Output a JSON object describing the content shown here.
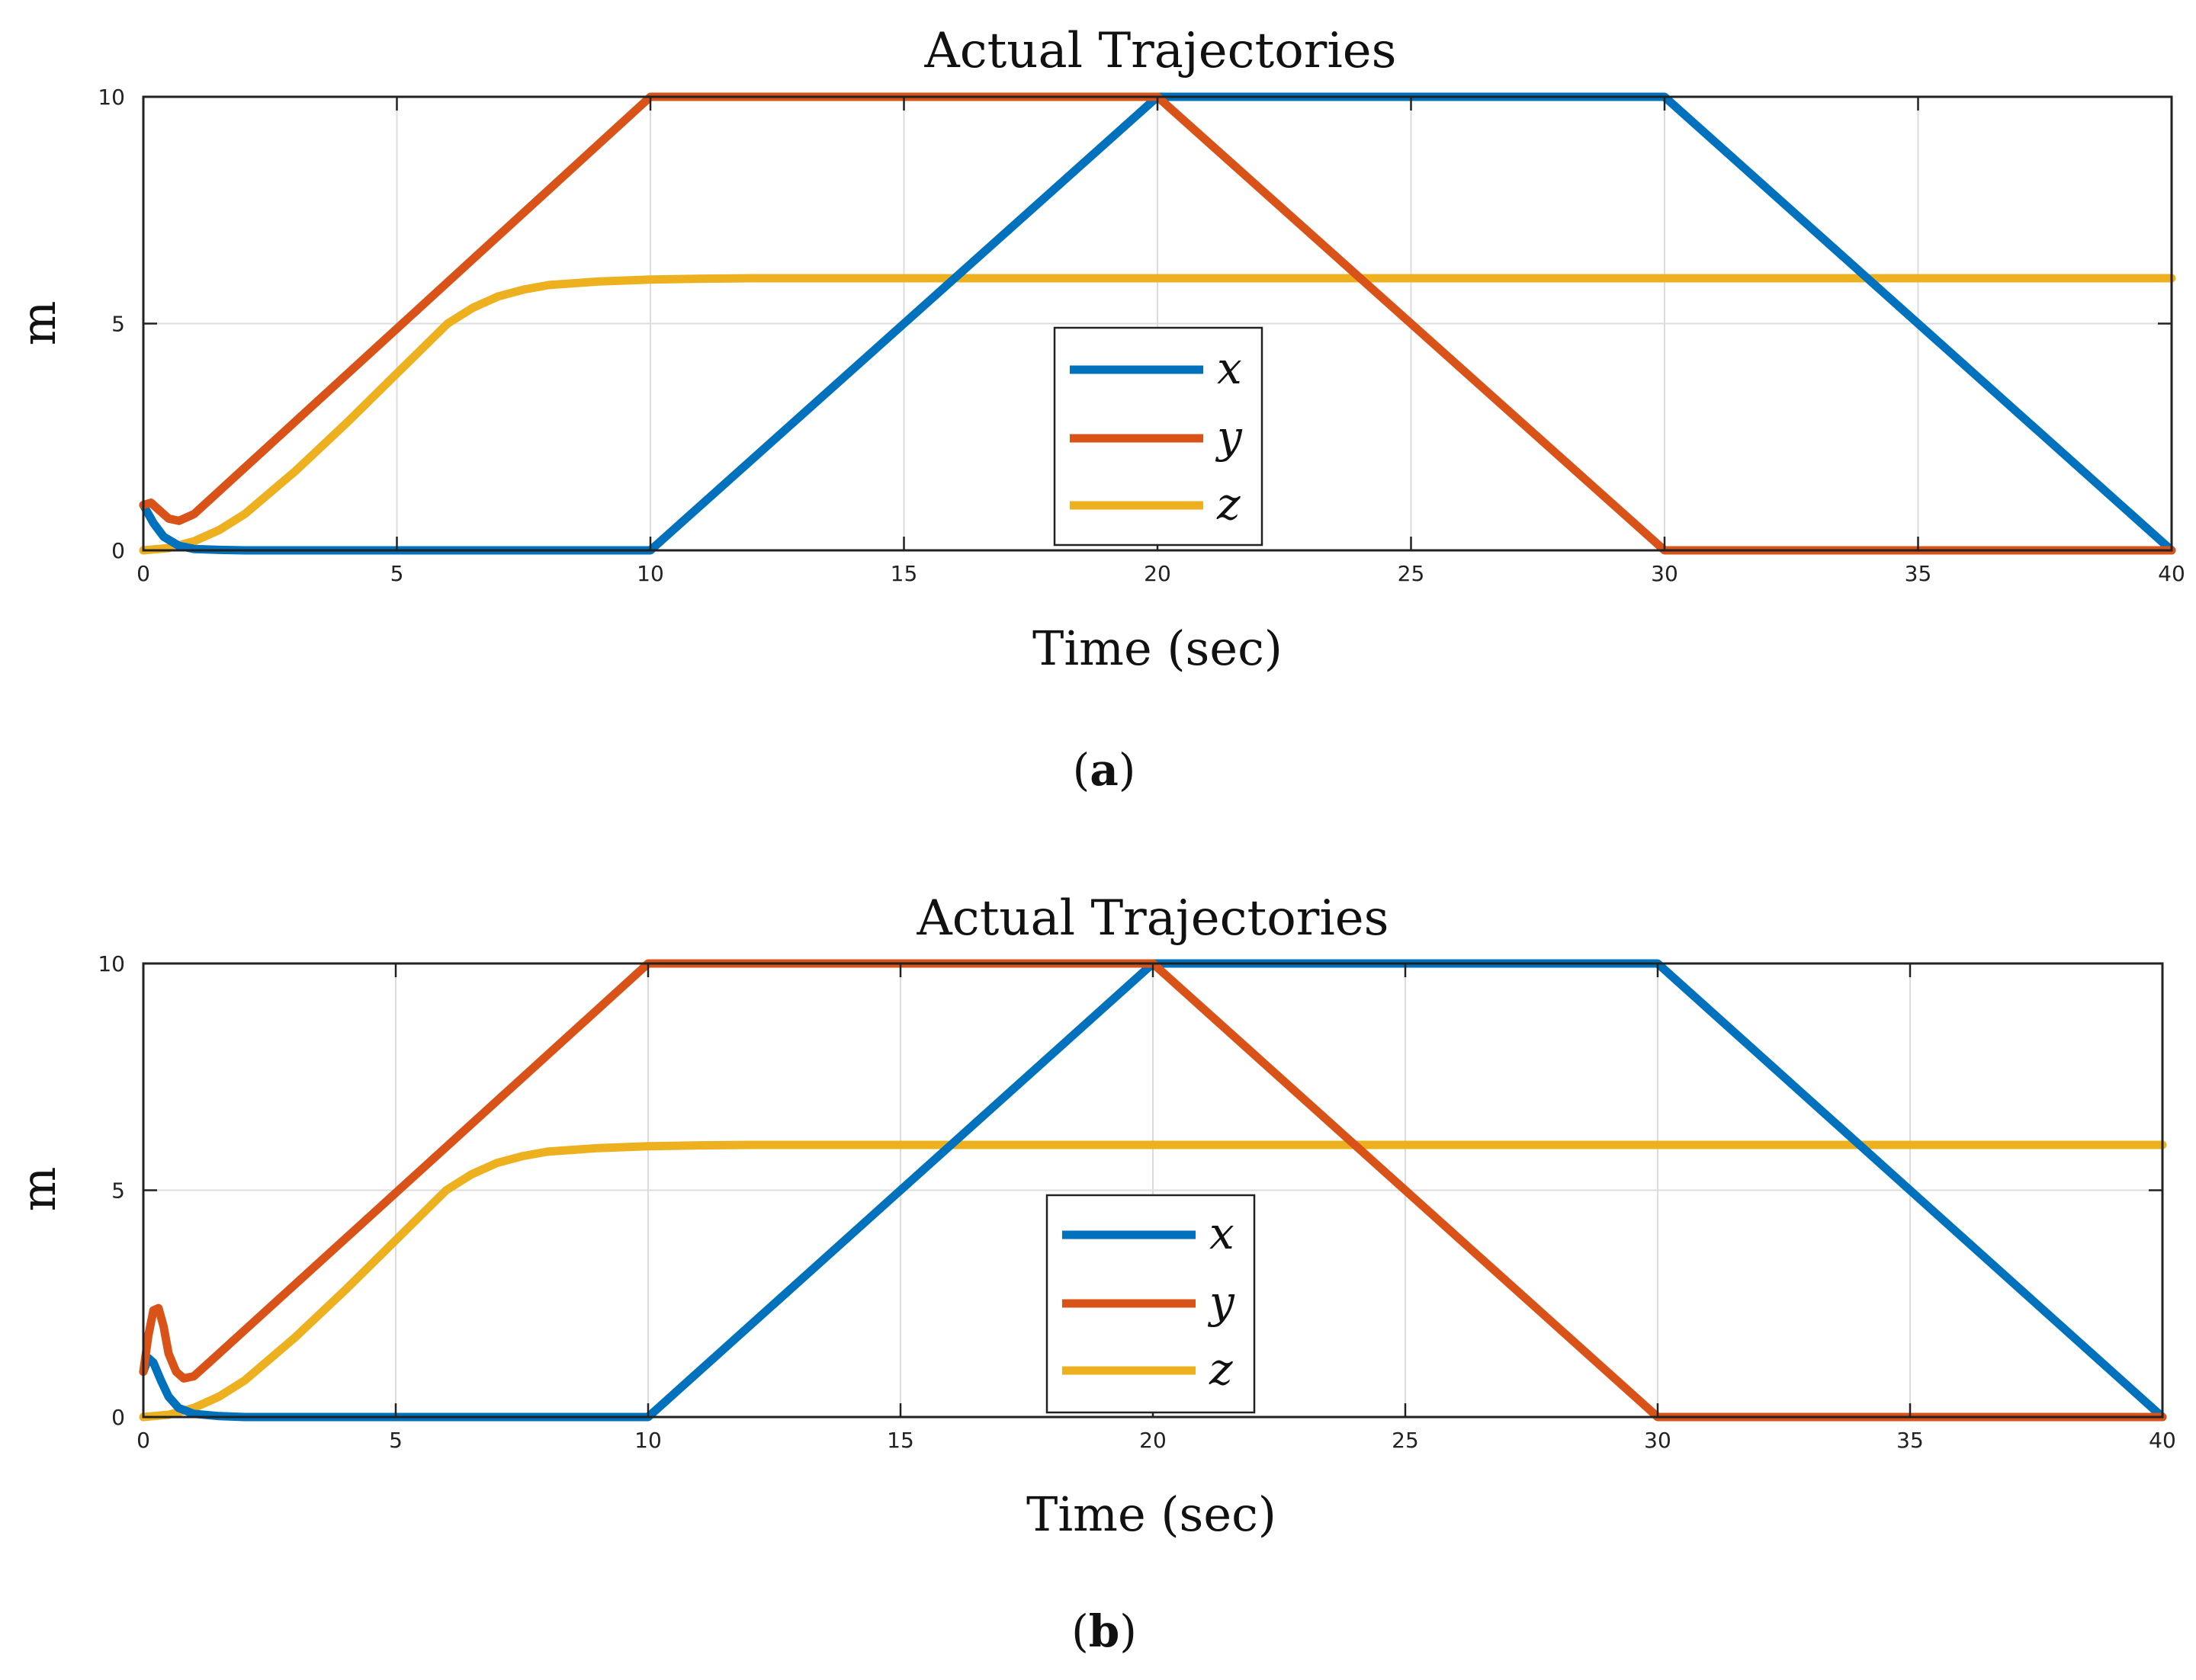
{
  "figure": {
    "captions": [
      "(a)",
      "(b)"
    ],
    "caption_letters": [
      "a",
      "b"
    ]
  },
  "colors": {
    "x": "#0072BD",
    "y": "#D95319",
    "z": "#EDB120",
    "grid": "#dcdcdc",
    "axis": "#222222"
  },
  "chart_data": [
    {
      "type": "line",
      "title": "Actual Trajectories",
      "xlabel": "Time (sec)",
      "ylabel": "m",
      "xlim": [
        0,
        40
      ],
      "ylim": [
        0,
        10
      ],
      "xticks": [
        0,
        5,
        10,
        15,
        20,
        25,
        30,
        35,
        40
      ],
      "yticks": [
        0,
        5,
        10
      ],
      "grid": true,
      "legend_position": "center",
      "series": [
        {
          "name": "x",
          "color": "#0072BD",
          "points": [
            [
              0,
              1
            ],
            [
              0.2,
              0.6
            ],
            [
              0.4,
              0.3
            ],
            [
              0.7,
              0.1
            ],
            [
              1,
              0.03
            ],
            [
              1.5,
              0.01
            ],
            [
              2,
              0
            ],
            [
              10,
              0
            ],
            [
              20,
              10
            ],
            [
              30,
              10
            ],
            [
              40,
              0
            ]
          ]
        },
        {
          "name": "y",
          "color": "#D95319",
          "points": [
            [
              0,
              1
            ],
            [
              0.15,
              1.05
            ],
            [
              0.3,
              0.9
            ],
            [
              0.5,
              0.7
            ],
            [
              0.7,
              0.65
            ],
            [
              1,
              0.8
            ],
            [
              10,
              10
            ],
            [
              20,
              10
            ],
            [
              30,
              0
            ],
            [
              40,
              0
            ]
          ]
        },
        {
          "name": "z",
          "color": "#EDB120",
          "points": [
            [
              0,
              0
            ],
            [
              0.5,
              0.05
            ],
            [
              1,
              0.2
            ],
            [
              1.5,
              0.45
            ],
            [
              2,
              0.8
            ],
            [
              3,
              1.75
            ],
            [
              4,
              2.8
            ],
            [
              5,
              3.9
            ],
            [
              6,
              5.0
            ],
            [
              6.5,
              5.35
            ],
            [
              7,
              5.6
            ],
            [
              7.5,
              5.75
            ],
            [
              8,
              5.85
            ],
            [
              9,
              5.93
            ],
            [
              10,
              5.97
            ],
            [
              11,
              5.99
            ],
            [
              12,
              6
            ],
            [
              40,
              6
            ]
          ]
        }
      ]
    },
    {
      "type": "line",
      "title": "Actual Trajectories",
      "xlabel": "Time (sec)",
      "ylabel": "m",
      "xlim": [
        0,
        40
      ],
      "ylim": [
        0,
        10
      ],
      "xticks": [
        0,
        5,
        10,
        15,
        20,
        25,
        30,
        35,
        40
      ],
      "yticks": [
        0,
        5,
        10
      ],
      "grid": true,
      "legend_position": "center",
      "series": [
        {
          "name": "x",
          "color": "#0072BD",
          "points": [
            [
              0,
              1
            ],
            [
              0.1,
              1.3
            ],
            [
              0.2,
              1.2
            ],
            [
              0.35,
              0.8
            ],
            [
              0.5,
              0.45
            ],
            [
              0.7,
              0.2
            ],
            [
              1,
              0.07
            ],
            [
              1.5,
              0.02
            ],
            [
              2,
              0
            ],
            [
              10,
              0
            ],
            [
              20,
              10
            ],
            [
              30,
              10
            ],
            [
              40,
              0
            ]
          ]
        },
        {
          "name": "y",
          "color": "#D95319",
          "points": [
            [
              0,
              1
            ],
            [
              0.1,
              1.8
            ],
            [
              0.2,
              2.35
            ],
            [
              0.3,
              2.4
            ],
            [
              0.4,
              2.0
            ],
            [
              0.5,
              1.4
            ],
            [
              0.65,
              1.0
            ],
            [
              0.8,
              0.85
            ],
            [
              1,
              0.9
            ],
            [
              1.3,
              1.2
            ],
            [
              10,
              10
            ],
            [
              20,
              10
            ],
            [
              30,
              0
            ],
            [
              40,
              0
            ]
          ]
        },
        {
          "name": "z",
          "color": "#EDB120",
          "points": [
            [
              0,
              0
            ],
            [
              0.5,
              0.05
            ],
            [
              1,
              0.2
            ],
            [
              1.5,
              0.45
            ],
            [
              2,
              0.8
            ],
            [
              3,
              1.75
            ],
            [
              4,
              2.8
            ],
            [
              5,
              3.9
            ],
            [
              6,
              5.0
            ],
            [
              6.5,
              5.35
            ],
            [
              7,
              5.6
            ],
            [
              7.5,
              5.75
            ],
            [
              8,
              5.85
            ],
            [
              9,
              5.93
            ],
            [
              10,
              5.97
            ],
            [
              11,
              5.99
            ],
            [
              12,
              6
            ],
            [
              40,
              6
            ]
          ]
        }
      ]
    }
  ]
}
